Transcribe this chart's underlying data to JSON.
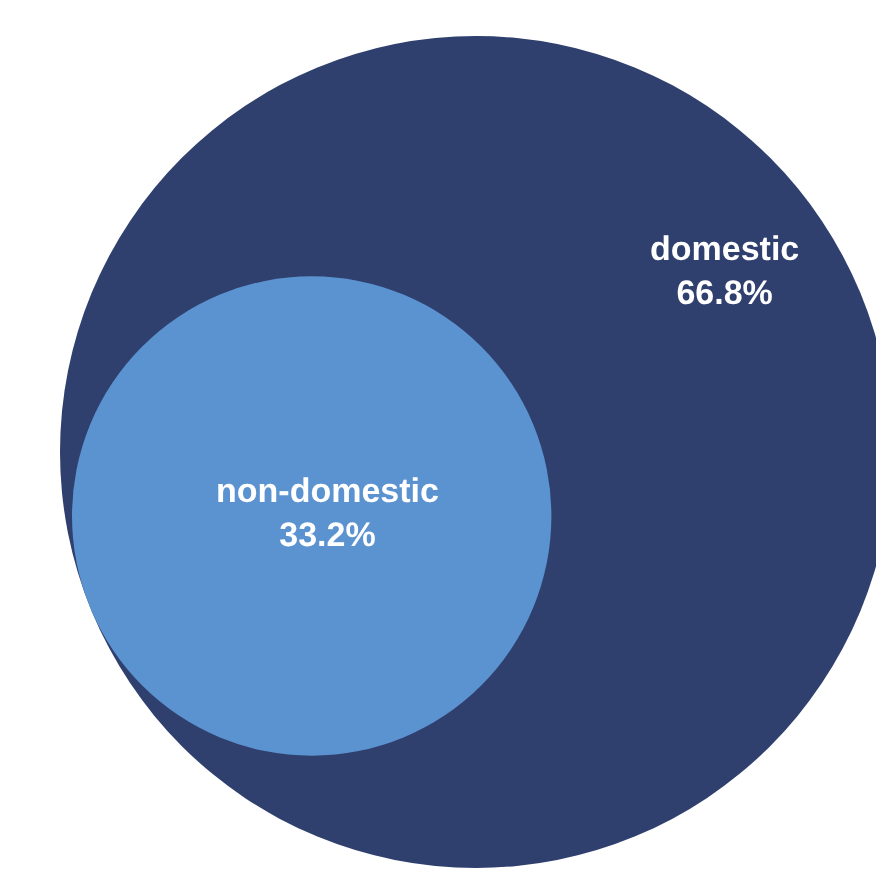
{
  "chart_data": {
    "type": "other",
    "categories": [
      "domestic",
      "non-domestic"
    ],
    "values": [
      66.8,
      33.2
    ],
    "colors": [
      "#2f3f6e",
      "#5b93d0"
    ],
    "value_labels": [
      "66.8%",
      "33.2%"
    ]
  }
}
